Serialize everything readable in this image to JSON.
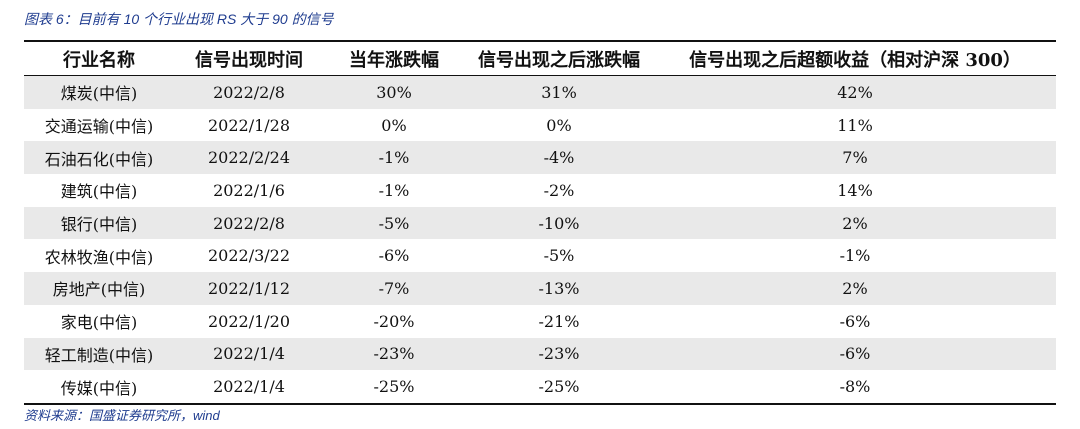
{
  "caption": "图表 6：目前有 10 个行业出现 RS 大于 90 的信号",
  "table": {
    "headers": [
      "行业名称",
      "信号出现时间",
      "当年涨跌幅",
      "信号出现之后涨跌幅",
      "信号出现之后超额收益（相对沪深 300）"
    ],
    "rows": [
      [
        "煤炭(中信)",
        "2022/2/8",
        "30%",
        "31%",
        "42%"
      ],
      [
        "交通运输(中信)",
        "2022/1/28",
        "0%",
        "0%",
        "11%"
      ],
      [
        "石油石化(中信)",
        "2022/2/24",
        "-1%",
        "-4%",
        "7%"
      ],
      [
        "建筑(中信)",
        "2022/1/6",
        "-1%",
        "-2%",
        "14%"
      ],
      [
        "银行(中信)",
        "2022/2/8",
        "-5%",
        "-10%",
        "2%"
      ],
      [
        "农林牧渔(中信)",
        "2022/3/22",
        "-6%",
        "-5%",
        "-1%"
      ],
      [
        "房地产(中信)",
        "2022/1/12",
        "-7%",
        "-13%",
        "2%"
      ],
      [
        "家电(中信)",
        "2022/1/20",
        "-20%",
        "-21%",
        "-6%"
      ],
      [
        "轻工制造(中信)",
        "2022/1/4",
        "-23%",
        "-23%",
        "-6%"
      ],
      [
        "传媒(中信)",
        "2022/1/4",
        "-25%",
        "-25%",
        "-8%"
      ]
    ]
  },
  "source": "资料来源：国盛证券研究所，wind",
  "colors": {
    "caption_text": "#1f3c8f",
    "stripe": "#e9e9e9",
    "rule": "#111111"
  }
}
